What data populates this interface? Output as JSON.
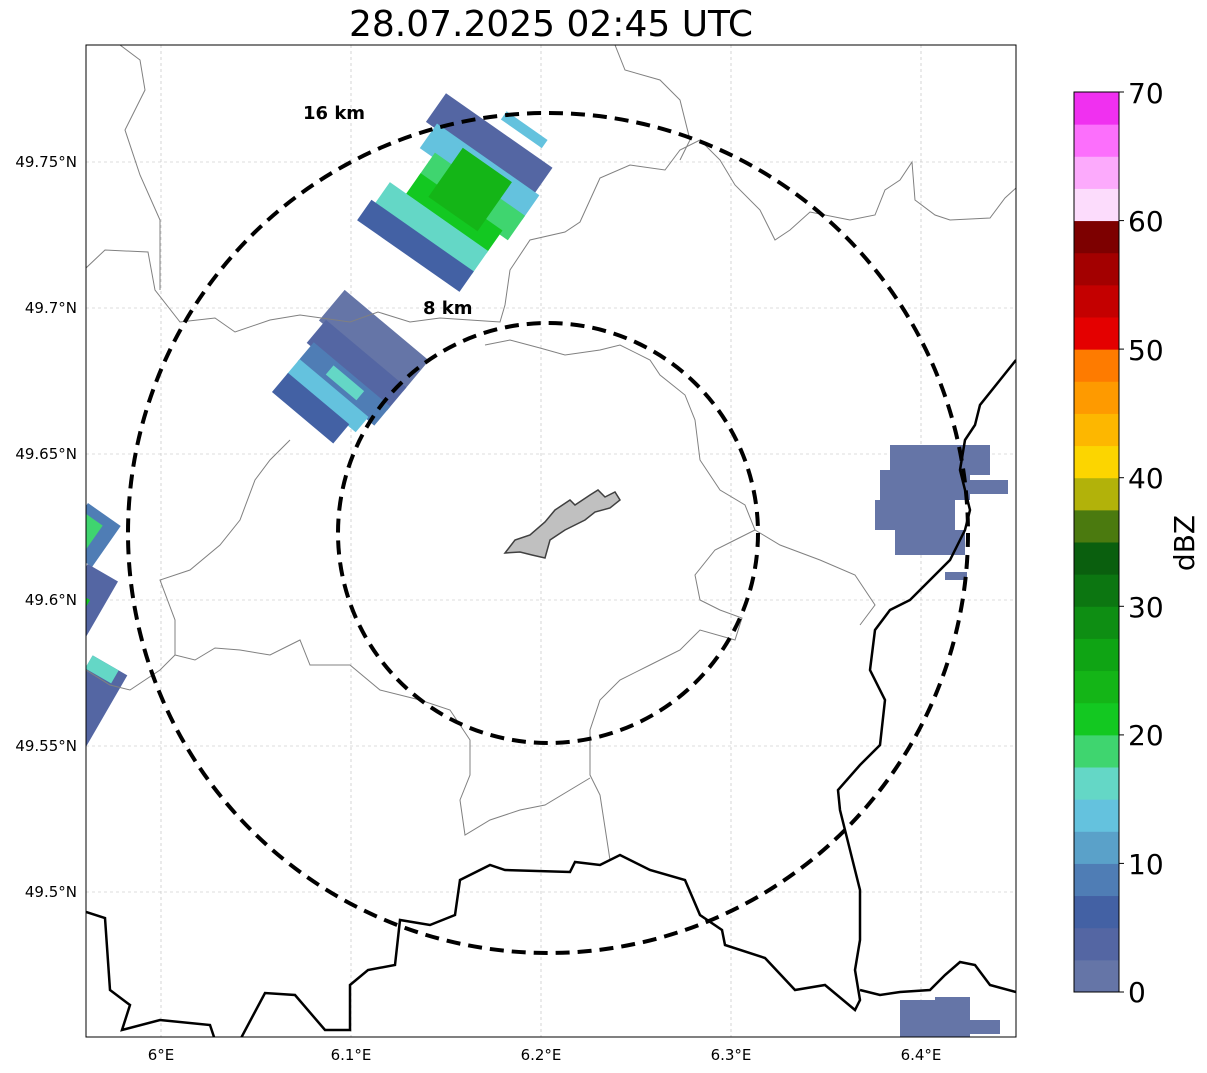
{
  "title": "28.07.2025 02:45 UTC",
  "map": {
    "x_ticks": [
      "6°E",
      "6.1°E",
      "6.2°E",
      "6.3°E",
      "6.4°E"
    ],
    "y_ticks": [
      "49.75°N",
      "49.7°N",
      "49.65°N",
      "49.6°N",
      "49.55°N",
      "49.5°N"
    ],
    "rings": [
      {
        "label": "8 km",
        "radius_km": 8
      },
      {
        "label": "16 km",
        "radius_km": 16
      }
    ]
  },
  "colorbar": {
    "label": "dBZ",
    "ticks": [
      "0",
      "10",
      "20",
      "30",
      "40",
      "50",
      "60",
      "70"
    ],
    "range": [
      0,
      70
    ],
    "colors": [
      "#6575a7",
      "#5466a3",
      "#4361a4",
      "#4f7db5",
      "#5aa1c9",
      "#64c2de",
      "#64d7c6",
      "#3fd56f",
      "#13c821",
      "#14b517",
      "#0fa414",
      "#0e8e13",
      "#0c7611",
      "#0a5f0e",
      "#4b7a0f",
      "#b2b20a",
      "#fcd500",
      "#fdb700",
      "#fe9a00",
      "#fe7b00",
      "#e40000",
      "#c40000",
      "#a30000",
      "#7d0000",
      "#fcdcfc",
      "#fcaafc",
      "#fc6ffc",
      "#f030f0"
    ]
  },
  "colors": {
    "border_heavy": "#000000",
    "border_light": "#808080",
    "ring": "#000000",
    "site": "#c0c0c0"
  }
}
